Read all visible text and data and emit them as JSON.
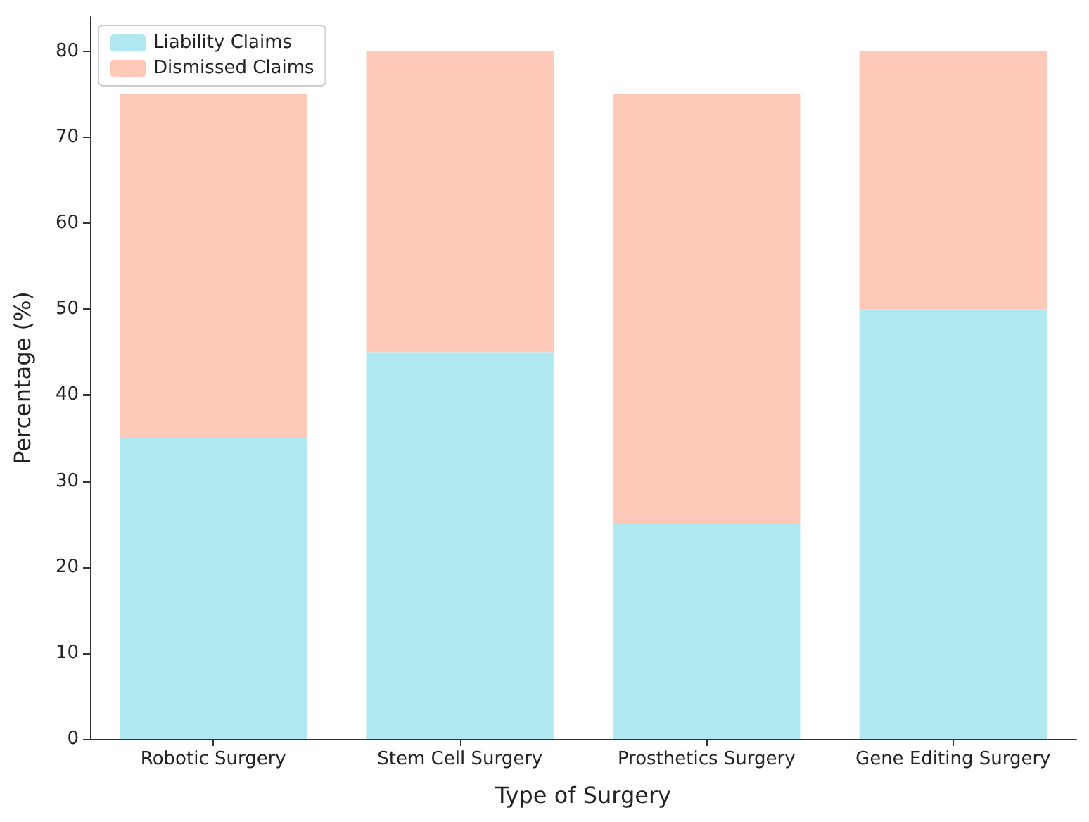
{
  "chart_data": {
    "type": "bar",
    "stacked": true,
    "xlabel": "Type of Surgery",
    "ylabel": "Percentage (%)",
    "categories": [
      "Robotic Surgery",
      "Stem Cell Surgery",
      "Prosthetics Surgery",
      "Gene Editing Surgery"
    ],
    "series": [
      {
        "name": "Liability Claims",
        "color": "#b0e9f0",
        "values": [
          35,
          45,
          25,
          50
        ]
      },
      {
        "name": "Dismissed Claims",
        "color": "#fec9b9",
        "values": [
          40,
          35,
          50,
          30
        ]
      }
    ],
    "ylim": [
      0,
      84
    ],
    "yticks": [
      0,
      10,
      20,
      30,
      40,
      50,
      60,
      70,
      80
    ],
    "grid": false,
    "legend": "top left"
  }
}
